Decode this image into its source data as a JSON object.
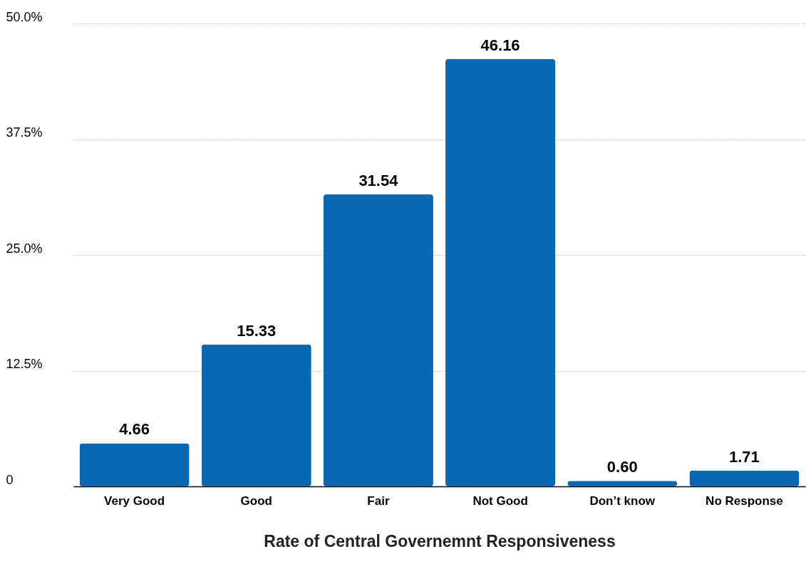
{
  "chart_data": {
    "type": "bar",
    "xlabel": "Rate of Central Governemnt Responsiveness",
    "categories": [
      "Very Good",
      "Good",
      "Fair",
      "Not Good",
      "Don’t know",
      "No Response"
    ],
    "values": [
      4.66,
      15.33,
      31.54,
      46.16,
      0.6,
      1.71
    ],
    "value_labels": [
      "4.66",
      "15.33",
      "31.54",
      "46.16",
      "0.60",
      "1.71"
    ],
    "color": "#0868b2",
    "ylim": [
      0,
      50
    ],
    "yticks": [
      {
        "value": 0,
        "label": "0"
      },
      {
        "value": 12.5,
        "label": "12.5%"
      },
      {
        "value": 25,
        "label": "25.0%"
      },
      {
        "value": 37.5,
        "label": "37.5%"
      },
      {
        "value": 50,
        "label": "50.0%"
      }
    ],
    "grid": "y"
  }
}
